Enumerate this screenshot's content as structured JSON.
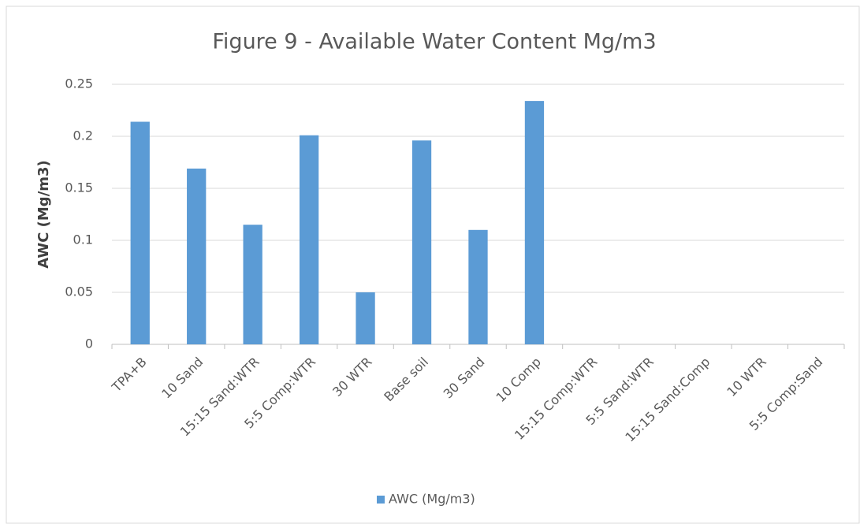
{
  "chart_data": {
    "type": "bar",
    "title": "Figure 9 - Available Water Content Mg/m3",
    "y_label": "AWC (Mg/m3)",
    "categories": [
      "TPA+B",
      "10 Sand",
      "15:15 Sand:WTR",
      "5:5 Comp:WTR",
      "30 WTR",
      "Base soil",
      "30 Sand",
      "10 Comp",
      "15:15 Comp:WTR",
      "5:5 Sand:WTR",
      "15:15 Sand:Comp",
      "10 WTR",
      "5:5 Comp:Sand"
    ],
    "series": [
      {
        "name": "AWC (Mg/m3)",
        "color": "#5b9bd5",
        "values": [
          0.214,
          0.169,
          0.115,
          0.201,
          0.05,
          0.196,
          0.11,
          0.234,
          null,
          null,
          null,
          null,
          null
        ]
      }
    ],
    "ylim": [
      0,
      0.25
    ],
    "yticks": [
      0,
      0.05,
      0.1,
      0.15,
      0.2,
      0.25
    ],
    "grid": true,
    "legend": "bottom"
  }
}
